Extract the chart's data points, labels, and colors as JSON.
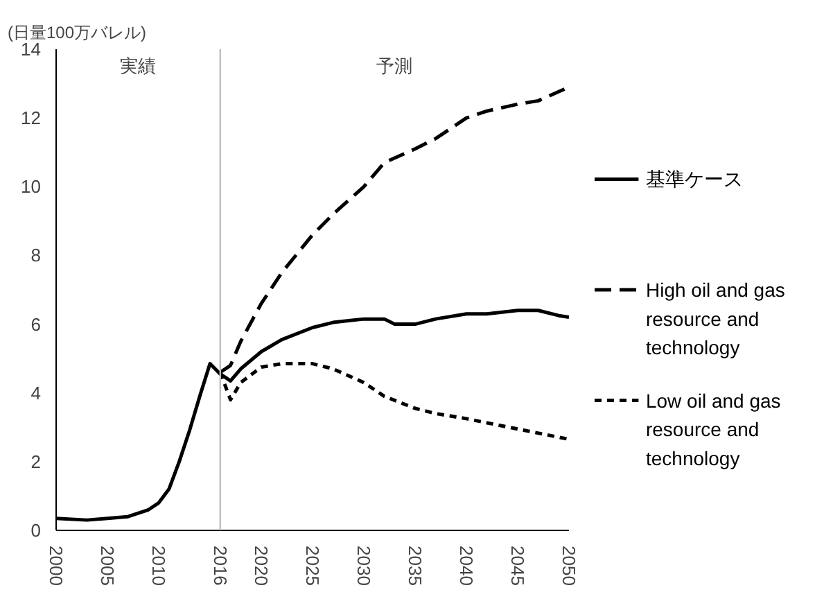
{
  "chart_data": {
    "type": "line",
    "ylabel": "(日量100万バレル)",
    "annotations": [
      "実績",
      "予測"
    ],
    "xlim": [
      2000,
      2050
    ],
    "xticks": [
      2000,
      2005,
      2010,
      2016,
      2020,
      2025,
      2030,
      2035,
      2040,
      2045,
      2050
    ],
    "ylim": [
      0,
      14
    ],
    "yticks": [
      0,
      2,
      4,
      6,
      8,
      10,
      12,
      14
    ],
    "grid": false,
    "legend": "right",
    "ref_lines": [
      {
        "axis": "x",
        "value": 2016,
        "color": "#bfbfbf"
      }
    ],
    "series": [
      {
        "name": "基準ケース",
        "color": "#000000",
        "line_style": "solid",
        "x": [
          2000,
          2003,
          2005,
          2007,
          2009,
          2010,
          2011,
          2012,
          2013,
          2014,
          2015,
          2016,
          2017,
          2018,
          2020,
          2022,
          2025,
          2027,
          2030,
          2032,
          2033,
          2035,
          2037,
          2040,
          2042,
          2045,
          2047,
          2049,
          2050
        ],
        "values": [
          0.35,
          0.3,
          0.35,
          0.4,
          0.6,
          0.8,
          1.2,
          2.0,
          2.9,
          3.9,
          4.85,
          4.55,
          4.35,
          4.7,
          5.2,
          5.55,
          5.9,
          6.05,
          6.15,
          6.15,
          6.0,
          6.0,
          6.15,
          6.3,
          6.3,
          6.4,
          6.4,
          6.25,
          6.2
        ]
      },
      {
        "name": "High oil and gas resource and technology",
        "color": "#000000",
        "line_style": "dashed",
        "x": [
          2016,
          2017,
          2018,
          2020,
          2022,
          2025,
          2027,
          2030,
          2032,
          2035,
          2037,
          2040,
          2042,
          2045,
          2047,
          2050
        ],
        "values": [
          4.6,
          4.8,
          5.5,
          6.6,
          7.5,
          8.6,
          9.2,
          10.0,
          10.7,
          11.1,
          11.4,
          12.0,
          12.2,
          12.4,
          12.5,
          12.9
        ]
      },
      {
        "name": "Low oil and gas resource and technology",
        "color": "#000000",
        "line_style": "dotted",
        "x": [
          2016,
          2017,
          2018,
          2020,
          2022,
          2025,
          2027,
          2030,
          2032,
          2035,
          2037,
          2040,
          2045,
          2050
        ],
        "values": [
          4.6,
          3.8,
          4.3,
          4.75,
          4.85,
          4.85,
          4.7,
          4.3,
          3.9,
          3.55,
          3.4,
          3.25,
          2.95,
          2.65
        ]
      }
    ]
  }
}
